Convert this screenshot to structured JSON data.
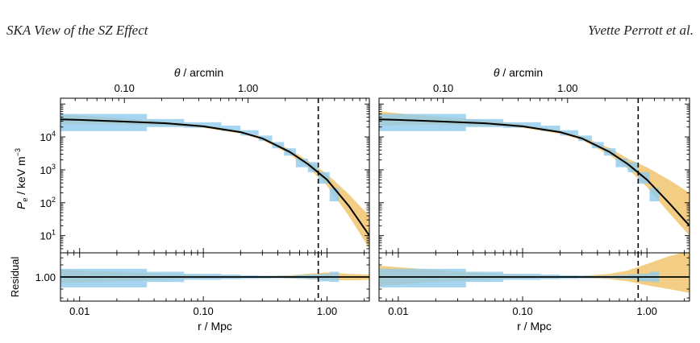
{
  "header": {
    "left_title": "SKA View of the SZ Effect",
    "right_author": "Yvette Perrott et al."
  },
  "colors": {
    "band": "#f2c46e",
    "boxes": "#8fcbee",
    "line": "#000000"
  },
  "chart_data": [
    {
      "type": "line",
      "panel": "left",
      "xlabel": "r / Mpc",
      "top_xlabel": "θ / arcmin",
      "ylabel_top": "Pe / keV m−3",
      "ylabel_bottom": "Residual",
      "xscale": "log",
      "yscale": "log",
      "xlim": [
        0.007,
        2.2
      ],
      "ylim": [
        3,
        150000
      ],
      "x_ticks": [
        "0.01",
        "0.10",
        "1.00"
      ],
      "top_x_ticks": [
        "0.10",
        "1.00"
      ],
      "y_ticks": [
        "10^1",
        "10^2",
        "10^3",
        "10^4"
      ],
      "residual_ticks": [
        "1.00"
      ],
      "residual_ylim": [
        0.25,
        4
      ],
      "vline_x": 0.85,
      "model": {
        "x": [
          0.007,
          0.01,
          0.02,
          0.05,
          0.1,
          0.2,
          0.3,
          0.5,
          0.7,
          1.0,
          1.5,
          2.2
        ],
        "y": [
          34000,
          33000,
          30000,
          26000,
          21000,
          14000,
          9000,
          3500,
          1500,
          500,
          80,
          10
        ]
      },
      "band": {
        "x": [
          0.007,
          0.01,
          0.02,
          0.05,
          0.1,
          0.2,
          0.3,
          0.5,
          0.7,
          1.0,
          1.5,
          2.2
        ],
        "upper": [
          48000,
          44000,
          38000,
          30000,
          23000,
          15500,
          10000,
          4200,
          1900,
          750,
          180,
          40
        ],
        "lower": [
          24000,
          24500,
          24000,
          22000,
          19000,
          12700,
          8100,
          2900,
          1200,
          330,
          40,
          4
        ]
      },
      "residual_band": {
        "x": [
          0.007,
          0.01,
          0.02,
          0.05,
          0.1,
          0.2,
          0.3,
          0.5,
          0.7,
          1.0,
          1.5,
          2.2
        ],
        "upper": [
          1.5,
          1.45,
          1.35,
          1.2,
          1.1,
          1.05,
          1.05,
          1.1,
          1.2,
          1.3,
          1.2,
          1.15
        ],
        "lower": [
          0.7,
          0.72,
          0.78,
          0.85,
          0.92,
          0.96,
          0.95,
          0.92,
          0.88,
          0.85,
          0.82,
          0.85
        ]
      },
      "bins": [
        {
          "x0": 0.007,
          "x1": 0.035,
          "y": 30000,
          "lo": 15000,
          "hi": 50000,
          "r": 1.0,
          "rlo": 0.55,
          "rhi": 1.6
        },
        {
          "x0": 0.035,
          "x1": 0.07,
          "y": 27000,
          "lo": 20000,
          "hi": 35000,
          "r": 1.0,
          "rlo": 0.75,
          "rhi": 1.35
        },
        {
          "x0": 0.07,
          "x1": 0.14,
          "y": 23000,
          "lo": 19000,
          "hi": 28000,
          "r": 1.0,
          "rlo": 0.85,
          "rhi": 1.2
        },
        {
          "x0": 0.14,
          "x1": 0.2,
          "y": 18000,
          "lo": 15000,
          "hi": 22000,
          "r": 1.0,
          "rlo": 0.88,
          "rhi": 1.15
        },
        {
          "x0": 0.2,
          "x1": 0.28,
          "y": 13000,
          "lo": 11000,
          "hi": 16000,
          "r": 1.0,
          "rlo": 0.9,
          "rhi": 1.1
        },
        {
          "x0": 0.28,
          "x1": 0.36,
          "y": 9000,
          "lo": 7500,
          "hi": 11000,
          "r": 1.0,
          "rlo": 0.92,
          "rhi": 1.08
        },
        {
          "x0": 0.36,
          "x1": 0.45,
          "y": 5500,
          "lo": 4500,
          "hi": 7000,
          "r": 1.0,
          "rlo": 0.93,
          "rhi": 1.07
        },
        {
          "x0": 0.45,
          "x1": 0.56,
          "y": 3500,
          "lo": 2700,
          "hi": 4500,
          "r": 1.0,
          "rlo": 0.92,
          "rhi": 1.08
        },
        {
          "x0": 0.56,
          "x1": 0.7,
          "y": 1600,
          "lo": 1200,
          "hi": 2200,
          "r": 1.0,
          "rlo": 0.9,
          "rhi": 1.12
        },
        {
          "x0": 0.7,
          "x1": 0.85,
          "y": 1200,
          "lo": 850,
          "hi": 1700,
          "r": 1.0,
          "rlo": 0.88,
          "rhi": 1.15
        },
        {
          "x0": 0.85,
          "x1": 1.05,
          "y": 550,
          "lo": 380,
          "hi": 850,
          "r": 0.95,
          "rlo": 0.78,
          "rhi": 1.2
        },
        {
          "x0": 1.05,
          "x1": 1.25,
          "y": 180,
          "lo": 110,
          "hi": 280,
          "r": 1.0,
          "rlo": 0.75,
          "rhi": 1.35
        }
      ]
    },
    {
      "type": "line",
      "panel": "right",
      "xlabel": "r / Mpc",
      "top_xlabel": "θ / arcmin",
      "xscale": "log",
      "yscale": "log",
      "xlim": [
        0.007,
        2.2
      ],
      "ylim": [
        3,
        150000
      ],
      "x_ticks": [
        "0.01",
        "0.10",
        "1.00"
      ],
      "top_x_ticks": [
        "0.10",
        "1.00"
      ],
      "residual_ylim": [
        0.25,
        4
      ],
      "vline_x": 0.85,
      "model": {
        "x": [
          0.007,
          0.01,
          0.02,
          0.05,
          0.1,
          0.2,
          0.3,
          0.5,
          0.7,
          1.0,
          1.5,
          2.2
        ],
        "y": [
          34000,
          33000,
          30000,
          26000,
          21000,
          14000,
          9000,
          3500,
          1500,
          500,
          100,
          20
        ]
      },
      "band": {
        "x": [
          0.007,
          0.01,
          0.02,
          0.05,
          0.1,
          0.2,
          0.3,
          0.5,
          0.7,
          1.0,
          1.5,
          2.2
        ],
        "upper": [
          60000,
          52000,
          42000,
          32000,
          24000,
          16000,
          10500,
          4600,
          2200,
          1200,
          500,
          200
        ],
        "lower": [
          22000,
          23000,
          23500,
          22000,
          19000,
          12500,
          8000,
          2800,
          1100,
          300,
          50,
          10
        ]
      },
      "residual_band": {
        "x": [
          0.007,
          0.01,
          0.02,
          0.05,
          0.1,
          0.2,
          0.3,
          0.5,
          0.7,
          1.0,
          1.5,
          2.2
        ],
        "upper": [
          1.9,
          1.75,
          1.5,
          1.25,
          1.12,
          1.06,
          1.07,
          1.2,
          1.45,
          2.1,
          3.3,
          4.5
        ],
        "lower": [
          0.6,
          0.65,
          0.75,
          0.85,
          0.92,
          0.96,
          0.95,
          0.88,
          0.78,
          0.62,
          0.5,
          0.4
        ]
      },
      "bins": [
        {
          "x0": 0.007,
          "x1": 0.035,
          "y": 30000,
          "lo": 15000,
          "hi": 50000,
          "r": 1.0,
          "rlo": 0.55,
          "rhi": 1.6
        },
        {
          "x0": 0.035,
          "x1": 0.07,
          "y": 27000,
          "lo": 20000,
          "hi": 35000,
          "r": 1.0,
          "rlo": 0.75,
          "rhi": 1.35
        },
        {
          "x0": 0.07,
          "x1": 0.14,
          "y": 23000,
          "lo": 19000,
          "hi": 28000,
          "r": 1.0,
          "rlo": 0.85,
          "rhi": 1.2
        },
        {
          "x0": 0.14,
          "x1": 0.2,
          "y": 18000,
          "lo": 15000,
          "hi": 22000,
          "r": 1.0,
          "rlo": 0.88,
          "rhi": 1.15
        },
        {
          "x0": 0.2,
          "x1": 0.28,
          "y": 13000,
          "lo": 11000,
          "hi": 16000,
          "r": 1.0,
          "rlo": 0.9,
          "rhi": 1.1
        },
        {
          "x0": 0.28,
          "x1": 0.36,
          "y": 9000,
          "lo": 7500,
          "hi": 11000,
          "r": 1.0,
          "rlo": 0.92,
          "rhi": 1.08
        },
        {
          "x0": 0.36,
          "x1": 0.45,
          "y": 5500,
          "lo": 4500,
          "hi": 7000,
          "r": 1.0,
          "rlo": 0.93,
          "rhi": 1.07
        },
        {
          "x0": 0.45,
          "x1": 0.56,
          "y": 3500,
          "lo": 2700,
          "hi": 4500,
          "r": 1.0,
          "rlo": 0.92,
          "rhi": 1.08
        },
        {
          "x0": 0.56,
          "x1": 0.7,
          "y": 1600,
          "lo": 1200,
          "hi": 2200,
          "r": 1.0,
          "rlo": 0.9,
          "rhi": 1.12
        },
        {
          "x0": 0.7,
          "x1": 0.85,
          "y": 1200,
          "lo": 850,
          "hi": 1700,
          "r": 1.0,
          "rlo": 0.88,
          "rhi": 1.15
        },
        {
          "x0": 0.85,
          "x1": 1.05,
          "y": 550,
          "lo": 380,
          "hi": 850,
          "r": 0.95,
          "rlo": 0.78,
          "rhi": 1.2
        },
        {
          "x0": 1.05,
          "x1": 1.25,
          "y": 180,
          "lo": 110,
          "hi": 280,
          "r": 1.0,
          "rlo": 0.75,
          "rhi": 1.35
        }
      ]
    }
  ]
}
